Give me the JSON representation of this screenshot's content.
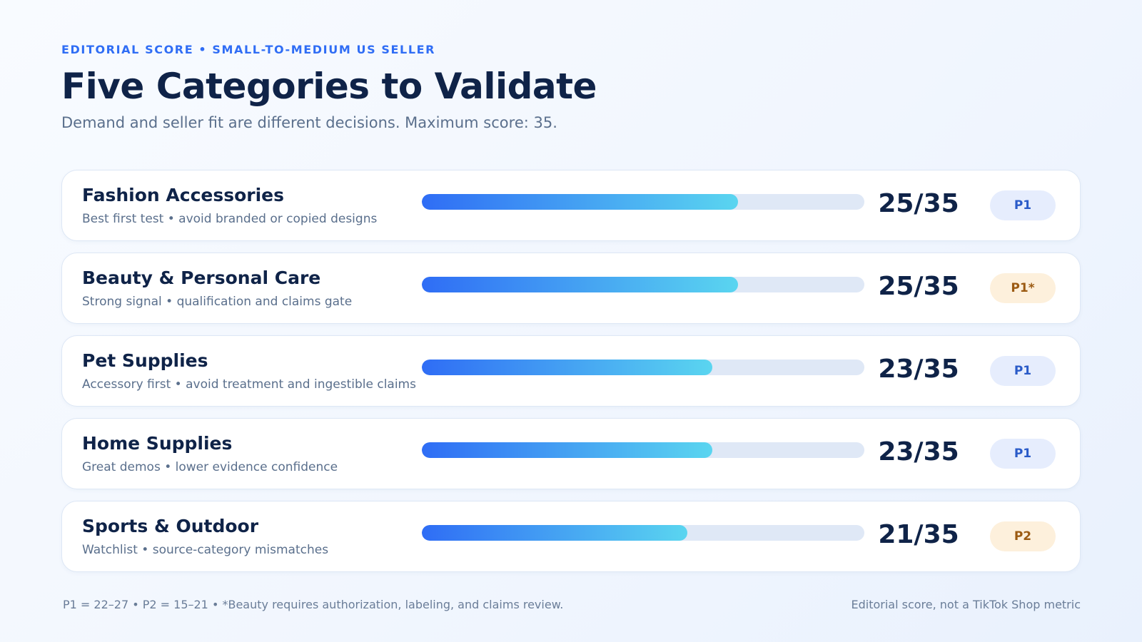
{
  "header": {
    "eyebrow": "EDITORIAL SCORE • SMALL-TO-MEDIUM US SELLER",
    "title": "Five Categories to Validate",
    "subtitle": "Demand and seller fit are different decisions. Maximum score: 35."
  },
  "chart_data": {
    "type": "bar",
    "orientation": "horizontal",
    "max": 35,
    "categories": [
      "Fashion Accessories",
      "Beauty & Personal Care",
      "Pet Supplies",
      "Home Supplies",
      "Sports & Outdoor"
    ],
    "values": [
      25,
      25,
      23,
      23,
      21
    ],
    "score_labels": [
      "25/35",
      "25/35",
      "23/35",
      "23/35",
      "21/35"
    ],
    "notes": [
      "Best first test • avoid branded or copied designs",
      "Strong signal • qualification and claims gate",
      "Accessory first • avoid treatment and ingestible claims",
      "Great demos • lower evidence confidence",
      "Watchlist • source-category mismatches"
    ],
    "tiers": [
      "P1",
      "P1*",
      "P1",
      "P1",
      "P2"
    ],
    "tier_styles": [
      "blue",
      "amber",
      "blue",
      "blue",
      "amber"
    ],
    "bar_gradient": [
      "#2f6df5",
      "#5ad5f0"
    ],
    "track_color": "#dfe8f6",
    "grid": false,
    "legend": "none"
  },
  "footer": {
    "footnote": "P1 = 22–27 • P2 = 15–21 • *Beauty requires authorization, labeling, and claims review.",
    "source": "Editorial score, not a TikTok Shop metric"
  }
}
